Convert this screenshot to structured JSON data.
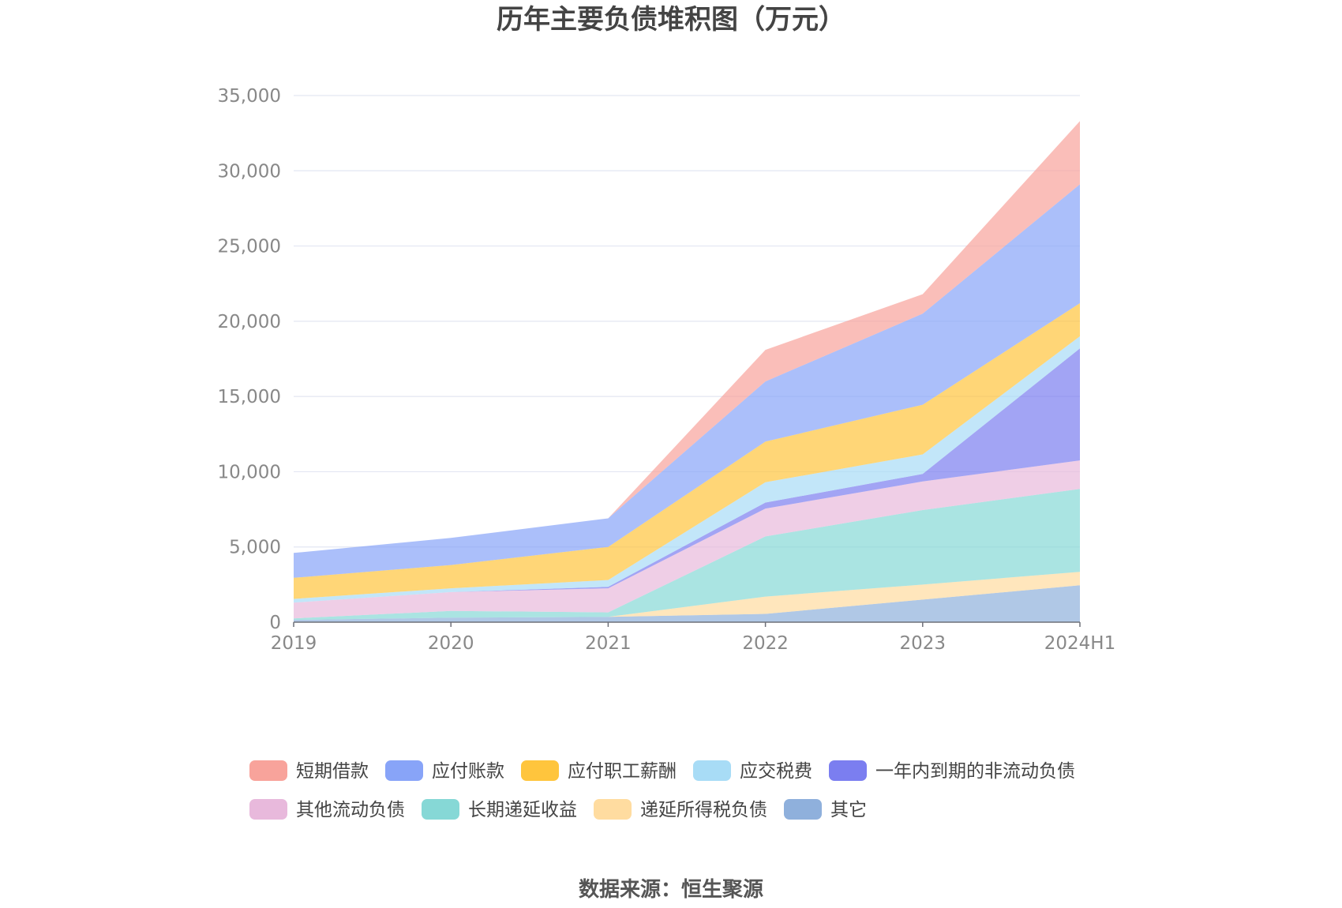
{
  "chart_data": {
    "type": "area",
    "stacked": true,
    "title": "历年主要负债堆积图（万元）",
    "categories": [
      "2019",
      "2020",
      "2021",
      "2022",
      "2023",
      "2024H1"
    ],
    "ylim": [
      0,
      35000
    ],
    "yticks": [
      0,
      5000,
      10000,
      15000,
      20000,
      25000,
      30000,
      35000
    ],
    "ytick_labels": [
      "0",
      "5,000",
      "10,000",
      "15,000",
      "20,000",
      "25,000",
      "30,000",
      "35,000"
    ],
    "grid": true,
    "legend_position": "bottom",
    "series": [
      {
        "name": "其它",
        "color": "#8fb0dc",
        "values": [
          150,
          300,
          350,
          550,
          1500,
          2450
        ]
      },
      {
        "name": "递延所得税负债",
        "color": "#ffdca0",
        "values": [
          0,
          0,
          0,
          1150,
          1000,
          900
        ]
      },
      {
        "name": "长期递延收益",
        "color": "#86d8d6",
        "values": [
          100,
          450,
          300,
          4000,
          4950,
          5500
        ]
      },
      {
        "name": "其他流动负债",
        "color": "#e8b9dc",
        "values": [
          1050,
          1250,
          1600,
          1850,
          1900,
          1900
        ]
      },
      {
        "name": "一年内到期的非流动负债",
        "color": "#7b7ef0",
        "values": [
          0,
          0,
          100,
          400,
          500,
          7450
        ]
      },
      {
        "name": "应交税费",
        "color": "#a8dcf6",
        "values": [
          250,
          250,
          450,
          1350,
          1300,
          800
        ]
      },
      {
        "name": "应付职工薪酬",
        "color": "#ffc53d",
        "values": [
          1400,
          1550,
          2200,
          2700,
          3300,
          2200
        ]
      },
      {
        "name": "应付账款",
        "color": "#88a4f8",
        "values": [
          1650,
          1800,
          1900,
          4000,
          6050,
          7900
        ]
      },
      {
        "name": "短期借款",
        "color": "#f8a39b",
        "values": [
          0,
          0,
          0,
          2100,
          1300,
          4200
        ]
      }
    ],
    "legend_order": [
      "短期借款",
      "应付账款",
      "应付职工薪酬",
      "应交税费",
      "一年内到期的非流动负债",
      "其他流动负债",
      "长期递延收益",
      "递延所得税负债",
      "其它"
    ]
  },
  "source": "数据来源：恒生聚源"
}
